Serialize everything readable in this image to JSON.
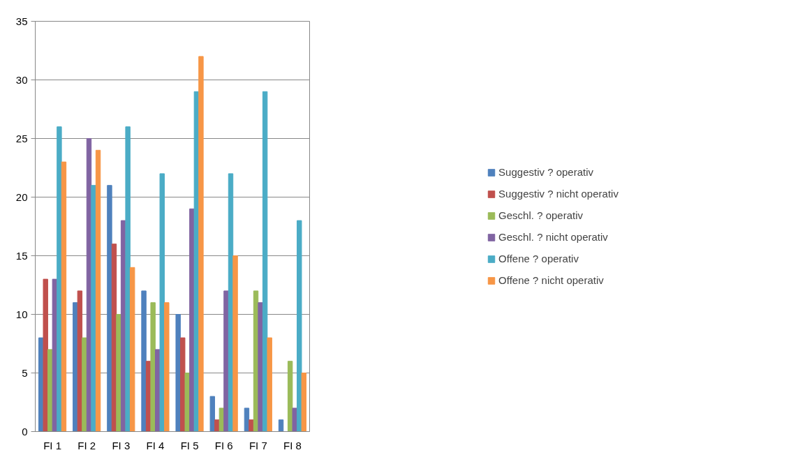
{
  "chart_data": {
    "type": "bar",
    "categories": [
      "FI 1",
      "FI 2",
      "FI 3",
      "FI 4",
      "FI 5",
      "FI 6",
      "FI 7",
      "FI 8"
    ],
    "series": [
      {
        "name": "Suggestiv ? operativ",
        "color": "#4f81bd",
        "values": [
          8,
          11,
          21,
          12,
          10,
          3,
          2,
          1
        ]
      },
      {
        "name": "Suggestiv ? nicht operativ",
        "color": "#c0504d",
        "values": [
          13,
          12,
          16,
          6,
          8,
          1,
          1,
          0
        ]
      },
      {
        "name": "Geschl. ? operativ",
        "color": "#9bbb59",
        "values": [
          7,
          8,
          10,
          11,
          5,
          2,
          12,
          6
        ]
      },
      {
        "name": "Geschl. ? nicht operativ",
        "color": "#8064a2",
        "values": [
          13,
          25,
          18,
          7,
          19,
          12,
          11,
          2
        ]
      },
      {
        "name": "Offene ? operativ",
        "color": "#4bacc6",
        "values": [
          26,
          21,
          26,
          22,
          29,
          22,
          29,
          18
        ]
      },
      {
        "name": "Offene ? nicht operativ",
        "color": "#f79646",
        "values": [
          23,
          24,
          14,
          11,
          32,
          15,
          8,
          5
        ]
      }
    ],
    "ylim": [
      0,
      35
    ],
    "yticks": [
      0,
      5,
      10,
      15,
      20,
      25,
      30,
      35
    ],
    "grid": "y",
    "legend": "right"
  }
}
